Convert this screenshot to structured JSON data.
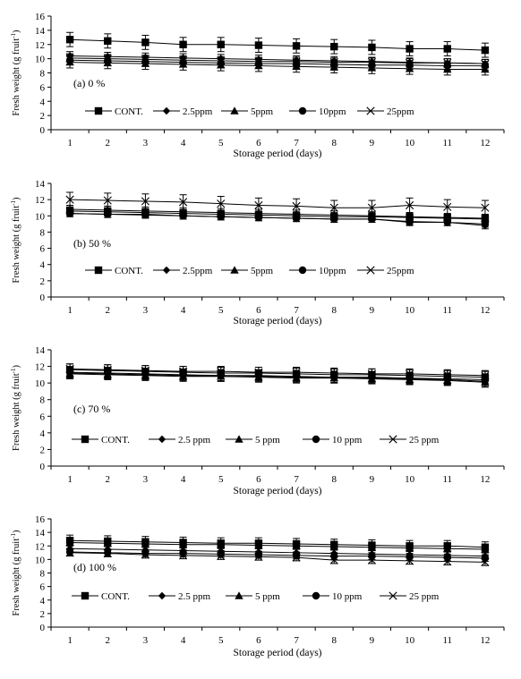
{
  "chart_data": [
    {
      "type": "line",
      "panel_label": "(a) 0 %",
      "xlabel": "Storage period (days)",
      "ylabel": "Fresh weight (g fruit",
      "ylabel_sup": "-1",
      "ylabel_close": ")",
      "ylim": [
        0,
        16
      ],
      "yticks": [
        0,
        2,
        4,
        6,
        8,
        10,
        12,
        14,
        16
      ],
      "x": [
        1,
        2,
        3,
        4,
        5,
        6,
        7,
        8,
        9,
        10,
        11,
        12
      ],
      "legend": [
        "CONT.",
        "2.5ppm",
        "5ppm",
        "10ppm",
        "25ppm"
      ],
      "series": [
        {
          "name": "CONT.",
          "marker": "square",
          "values": [
            12.7,
            12.5,
            12.3,
            12.0,
            12.0,
            11.9,
            11.8,
            11.7,
            11.6,
            11.4,
            11.4,
            11.2
          ],
          "err": 1.0
        },
        {
          "name": "2.5ppm",
          "marker": "diamond",
          "values": [
            10.4,
            10.3,
            10.2,
            10.1,
            10.0,
            9.9,
            9.8,
            9.7,
            9.6,
            9.5,
            9.4,
            9.3
          ],
          "err": 0.6
        },
        {
          "name": "5ppm",
          "marker": "triangle",
          "values": [
            9.5,
            9.4,
            9.3,
            9.2,
            9.1,
            9.0,
            8.9,
            8.8,
            8.7,
            8.6,
            8.5,
            8.5
          ],
          "err": 0.8
        },
        {
          "name": "10ppm",
          "marker": "circle",
          "values": [
            9.8,
            9.7,
            9.6,
            9.5,
            9.4,
            9.3,
            9.3,
            9.2,
            9.1,
            9.1,
            9.0,
            9.0
          ],
          "err": 0.6
        },
        {
          "name": "25ppm",
          "marker": "x",
          "values": [
            10.1,
            10.0,
            9.9,
            9.8,
            9.7,
            9.6,
            9.6,
            9.5,
            9.5,
            9.4,
            9.4,
            9.3
          ],
          "err": 0.6
        }
      ]
    },
    {
      "type": "line",
      "panel_label": "(b) 50 %",
      "xlabel": "Storage period (days)",
      "ylabel": "Fresh weight (g fruit",
      "ylabel_sup": "-1",
      "ylabel_close": ")",
      "ylim": [
        0,
        14
      ],
      "yticks": [
        0,
        2,
        4,
        6,
        8,
        10,
        12,
        14
      ],
      "x": [
        1,
        2,
        3,
        4,
        5,
        6,
        7,
        8,
        9,
        10,
        11,
        12
      ],
      "legend": [
        "CONT.",
        "2.5ppm",
        "5ppm",
        "10ppm",
        "25ppm"
      ],
      "series": [
        {
          "name": "CONT.",
          "marker": "square",
          "values": [
            10.6,
            10.5,
            10.4,
            10.3,
            10.2,
            10.1,
            10.0,
            9.9,
            9.9,
            9.8,
            9.7,
            9.6
          ],
          "err": 0.5
        },
        {
          "name": "2.5ppm",
          "marker": "diamond",
          "values": [
            10.3,
            10.2,
            10.1,
            10.0,
            9.9,
            9.8,
            9.7,
            9.6,
            9.6,
            9.3,
            9.2,
            8.8
          ],
          "err": 0.4
        },
        {
          "name": "5ppm",
          "marker": "triangle",
          "values": [
            10.8,
            10.7,
            10.6,
            10.5,
            10.4,
            10.3,
            10.2,
            10.1,
            10.0,
            9.9,
            9.8,
            9.7
          ],
          "err": 0.5
        },
        {
          "name": "10ppm",
          "marker": "circle",
          "values": [
            10.3,
            10.2,
            10.2,
            10.0,
            9.9,
            9.8,
            9.7,
            9.6,
            9.6,
            9.2,
            9.2,
            9.0
          ],
          "err": 0.4
        },
        {
          "name": "25ppm",
          "marker": "x",
          "values": [
            12.0,
            11.9,
            11.8,
            11.7,
            11.5,
            11.3,
            11.2,
            11.0,
            11.0,
            11.3,
            11.1,
            11.0
          ],
          "err": 0.9
        }
      ]
    },
    {
      "type": "line",
      "panel_label": "(c) 70 %",
      "xlabel": "Storage period (days)",
      "ylabel": "Fresh weight (g fruit",
      "ylabel_sup": "-1",
      "ylabel_close": ")",
      "ylim": [
        0,
        14
      ],
      "yticks": [
        0,
        2,
        4,
        6,
        8,
        10,
        12,
        14
      ],
      "x": [
        1,
        2,
        3,
        4,
        5,
        6,
        7,
        8,
        9,
        10,
        11,
        12
      ],
      "legend": [
        "CONT.",
        "2.5 ppm",
        "5 ppm",
        "10 ppm",
        "25 ppm"
      ],
      "series": [
        {
          "name": "CONT.",
          "marker": "square",
          "values": [
            11.6,
            11.5,
            11.4,
            11.3,
            11.2,
            11.2,
            11.1,
            11.0,
            11.0,
            10.9,
            10.8,
            10.7
          ],
          "err": 0.7
        },
        {
          "name": "2.5 ppm",
          "marker": "diamond",
          "values": [
            11.2,
            11.1,
            11.0,
            10.9,
            10.8,
            10.8,
            10.7,
            10.6,
            10.6,
            10.5,
            10.4,
            10.2
          ],
          "err": 0.6
        },
        {
          "name": "5 ppm",
          "marker": "triangle",
          "values": [
            11.1,
            11.0,
            10.9,
            10.8,
            10.8,
            10.7,
            10.6,
            10.6,
            10.5,
            10.4,
            10.3,
            10.1
          ],
          "err": 0.6
        },
        {
          "name": "10 ppm",
          "marker": "circle",
          "values": [
            11.3,
            11.2,
            11.1,
            11.0,
            10.9,
            10.9,
            10.8,
            10.7,
            10.7,
            10.6,
            10.5,
            10.4
          ],
          "err": 0.6
        },
        {
          "name": "25 ppm",
          "marker": "x",
          "values": [
            11.7,
            11.6,
            11.5,
            11.4,
            11.4,
            11.3,
            11.3,
            11.2,
            11.1,
            11.1,
            11.0,
            10.9
          ],
          "err": 0.6
        }
      ]
    },
    {
      "type": "line",
      "panel_label": "(d) 100 %",
      "xlabel": "Storage period (days)",
      "ylabel": "Fresh weight (g fruit",
      "ylabel_sup": "-1",
      "ylabel_close": ")",
      "ylim": [
        0,
        16
      ],
      "yticks": [
        0,
        2,
        4,
        6,
        8,
        10,
        12,
        14,
        16
      ],
      "x": [
        1,
        2,
        3,
        4,
        5,
        6,
        7,
        8,
        9,
        10,
        11,
        12
      ],
      "legend": [
        "CONT.",
        "2.5 ppm",
        "5 ppm",
        "10 ppm",
        "25 ppm"
      ],
      "series": [
        {
          "name": "CONT.",
          "marker": "square",
          "values": [
            12.8,
            12.7,
            12.6,
            12.5,
            12.4,
            12.4,
            12.3,
            12.2,
            12.1,
            12.0,
            12.0,
            11.8
          ],
          "err": 0.8
        },
        {
          "name": "2.5 ppm",
          "marker": "diamond",
          "values": [
            11.6,
            11.5,
            11.4,
            11.3,
            11.2,
            11.1,
            11.0,
            10.9,
            10.8,
            10.7,
            10.6,
            10.5
          ],
          "err": 0.5
        },
        {
          "name": "5 ppm",
          "marker": "triangle",
          "values": [
            12.5,
            12.4,
            12.3,
            12.2,
            12.2,
            12.1,
            12.0,
            11.9,
            11.8,
            11.7,
            11.6,
            11.5
          ],
          "err": 0.5
        },
        {
          "name": "10 ppm",
          "marker": "circle",
          "values": [
            11.1,
            11.0,
            10.9,
            10.9,
            10.8,
            10.7,
            10.6,
            10.5,
            10.5,
            10.4,
            10.3,
            10.2
          ],
          "err": 0.5
        },
        {
          "name": "25 ppm",
          "marker": "x",
          "values": [
            11.0,
            10.9,
            10.7,
            10.6,
            10.5,
            10.4,
            10.3,
            9.9,
            9.9,
            9.8,
            9.7,
            9.6
          ],
          "err": 0.5
        }
      ]
    }
  ]
}
